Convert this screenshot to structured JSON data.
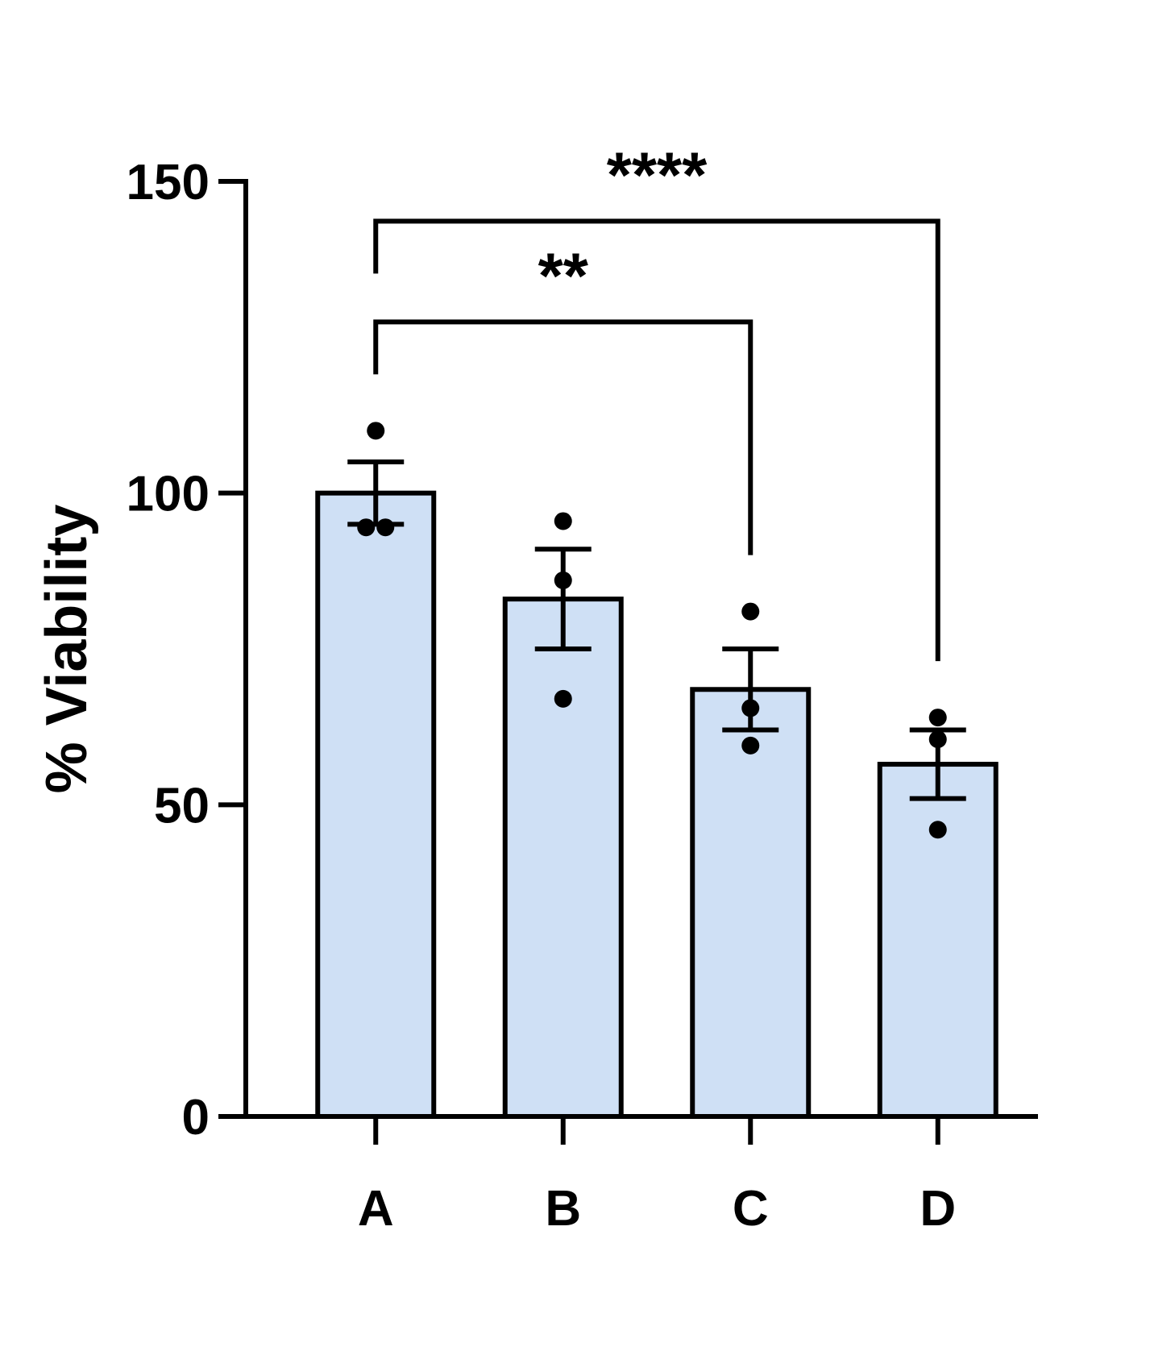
{
  "chart_data": {
    "type": "bar",
    "y_label": "% Viability",
    "categories": [
      "A",
      "B",
      "C",
      "D"
    ],
    "values": [
      100,
      83,
      68.5,
      56.5
    ],
    "errors": [
      5,
      8,
      6.5,
      5.5
    ],
    "points": [
      [
        110,
        94.5,
        94.5
      ],
      [
        95.5,
        86,
        67
      ],
      [
        81,
        65.5,
        59.5
      ],
      [
        64,
        60.5,
        46
      ]
    ],
    "color": "#cfe0f5",
    "ylim": [
      0,
      150
    ],
    "yticks": [
      0,
      50,
      100,
      150
    ],
    "comparisons": [
      {
        "from": 0,
        "to": 2,
        "label": "**"
      },
      {
        "from": 0,
        "to": 3,
        "label": "****"
      }
    ]
  }
}
